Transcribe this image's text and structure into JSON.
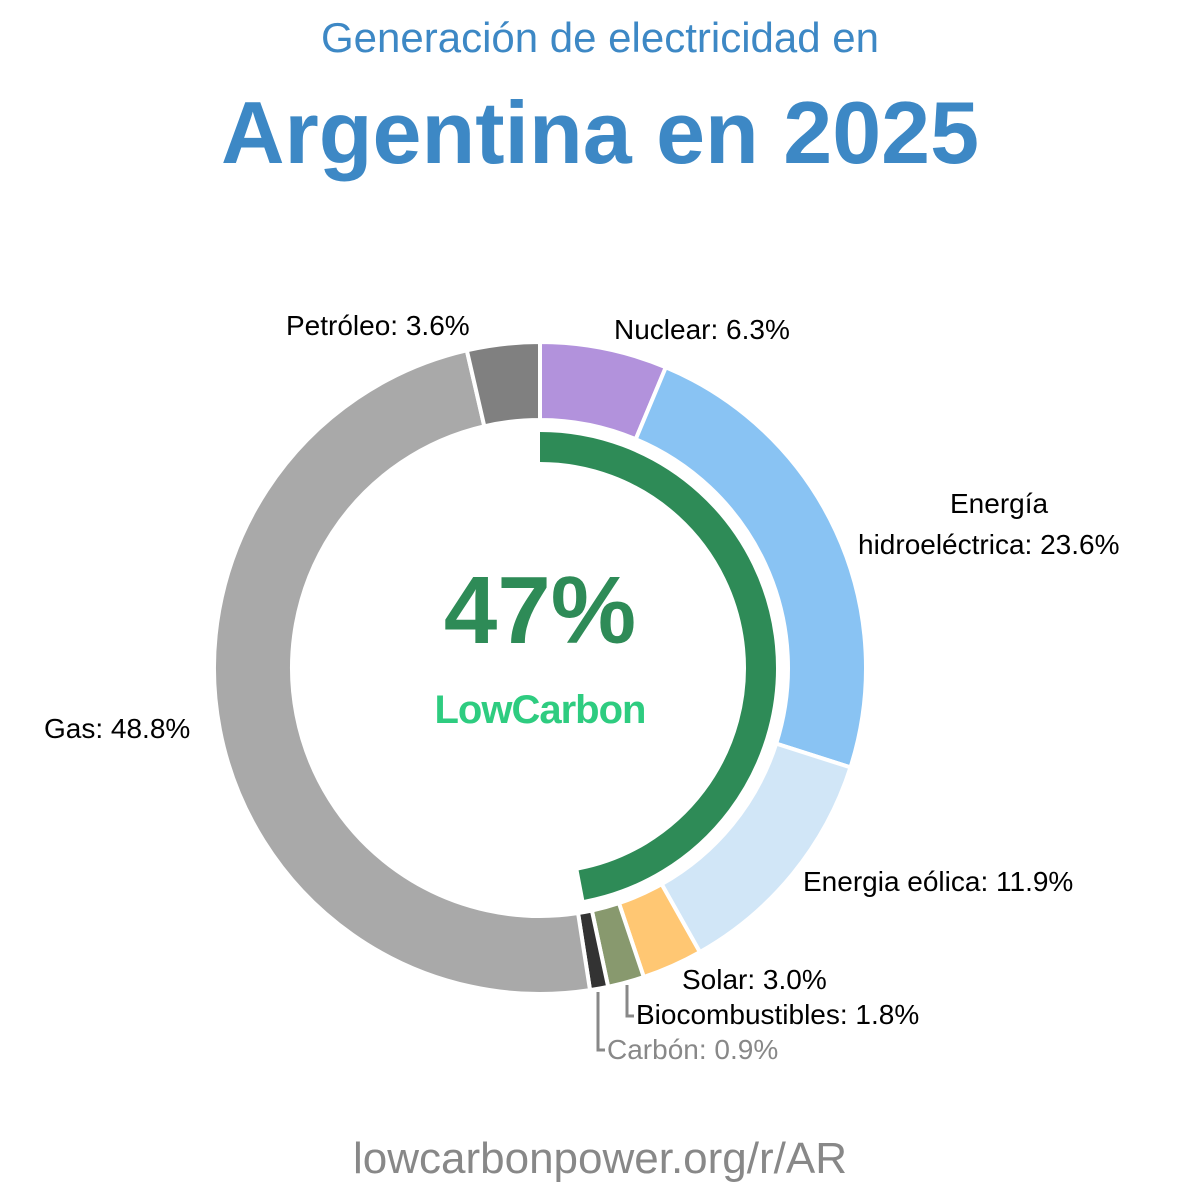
{
  "header": {
    "subtitle": "Generación de electricidad en",
    "title": "Argentina en 2025"
  },
  "center": {
    "value": "47%",
    "brand": "LowCarbon",
    "color": "#2e8b57",
    "brand_color": "#2ecc80"
  },
  "labels": {
    "nuclear": "Nuclear: 6.3%",
    "hydro_line1": "Energía",
    "hydro_line2": "hidroeléctrica: 23.6%",
    "wind": "Energia eólica: 11.9%",
    "solar": "Solar: 3.0%",
    "bio": "Biocombustibles: 1.8%",
    "coal": "Carbón: 0.9%",
    "gas": "Gas: 48.8%",
    "oil": "Petróleo: 3.6%"
  },
  "footer": {
    "url": "lowcarbonpower.org/r/AR"
  },
  "chart_data": {
    "type": "pie",
    "variant": "donut",
    "title": "Argentina en 2025",
    "subtitle": "Generación de electricidad en",
    "center_label": "47% LowCarbon",
    "low_carbon_share": 47,
    "categories": [
      "Nuclear",
      "Energía hidroeléctrica",
      "Energia eólica",
      "Solar",
      "Biocombustibles",
      "Carbón",
      "Gas",
      "Petróleo"
    ],
    "values": [
      6.3,
      23.6,
      11.9,
      3.0,
      1.8,
      0.9,
      48.8,
      3.6
    ],
    "colors": [
      "#b292dc",
      "#89c3f3",
      "#d1e6f7",
      "#ffc773",
      "#88996e",
      "#333333",
      "#a9a9a9",
      "#808080"
    ],
    "unit": "%",
    "start_angle": "12 o'clock, clockwise",
    "legend": "inline labels"
  }
}
